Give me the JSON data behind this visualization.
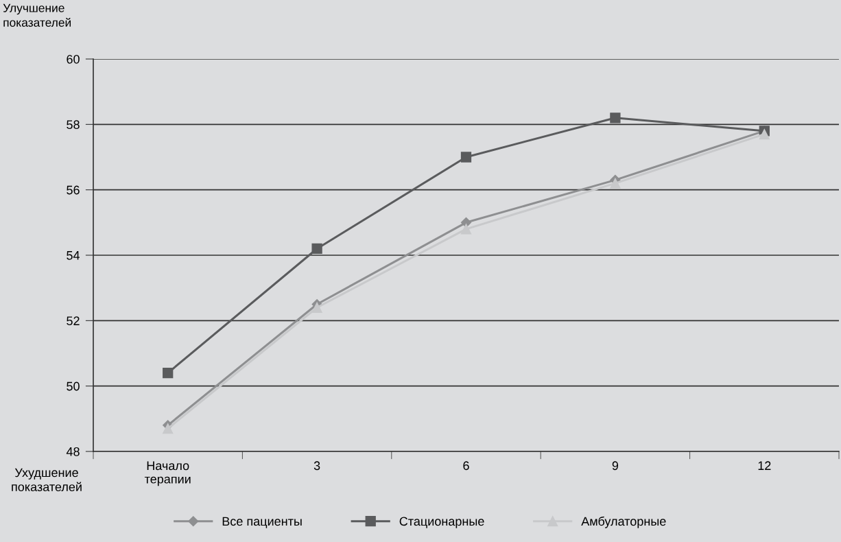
{
  "chart_data": {
    "type": "line",
    "ylabel": "Улучшение\nпоказателей",
    "annotations": [
      "Ухудшение\nпоказателей"
    ],
    "categories": [
      "Начало\nтерапии",
      "3",
      "6",
      "9",
      "12"
    ],
    "series": [
      {
        "name": "Все пациенты",
        "color": "#8e8f91",
        "marker": "diamond",
        "values": [
          48.8,
          52.5,
          55.0,
          56.3,
          57.8
        ]
      },
      {
        "name": "Стационарные",
        "color": "#5a5b5d",
        "marker": "square",
        "values": [
          50.4,
          54.2,
          57.0,
          58.2,
          57.8
        ]
      },
      {
        "name": "Амбулаторные",
        "color": "#c8c9cb",
        "marker": "triangle",
        "values": [
          48.7,
          52.4,
          54.8,
          56.2,
          57.7
        ]
      }
    ],
    "ylim": [
      48,
      60
    ],
    "yticks": [
      48,
      50,
      52,
      54,
      56,
      58,
      60
    ],
    "grid": "y",
    "legend": "bottom",
    "line_style": "solid"
  }
}
